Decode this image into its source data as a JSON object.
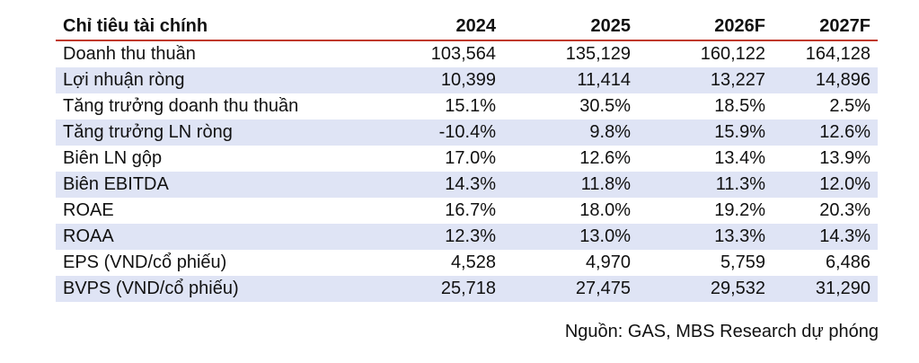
{
  "table": {
    "headers": [
      "Chỉ tiêu tài chính",
      "2024",
      "2025",
      "2026F",
      "2027F"
    ],
    "rows": [
      [
        "Doanh thu thuần",
        "103,564",
        "135,129",
        "160,122",
        "164,128"
      ],
      [
        "Lợi nhuận ròng",
        "10,399",
        "11,414",
        "13,227",
        "14,896"
      ],
      [
        "Tăng trưởng doanh thu thuần",
        "15.1%",
        "30.5%",
        "18.5%",
        "2.5%"
      ],
      [
        "Tăng trưởng LN ròng",
        "-10.4%",
        "9.8%",
        "15.9%",
        "12.6%"
      ],
      [
        "Biên LN gộp",
        "17.0%",
        "12.6%",
        "13.4%",
        "13.9%"
      ],
      [
        "Biên EBITDA",
        "14.3%",
        "11.8%",
        "11.3%",
        "12.0%"
      ],
      [
        "ROAE",
        "16.7%",
        "18.0%",
        "19.2%",
        "20.3%"
      ],
      [
        "ROAA",
        "12.3%",
        "13.0%",
        "13.3%",
        "14.3%"
      ],
      [
        "EPS (VND/cổ phiếu)",
        "4,528",
        "4,970",
        "5,759",
        "6,486"
      ],
      [
        "BVPS (VND/cổ phiếu)",
        "25,718",
        "27,475",
        "29,532",
        "31,290"
      ]
    ]
  },
  "source": "Nguồn: GAS, MBS Research dự phóng",
  "colors": {
    "header_rule": "#c0392b",
    "row_shade": "#dfe4f5"
  }
}
